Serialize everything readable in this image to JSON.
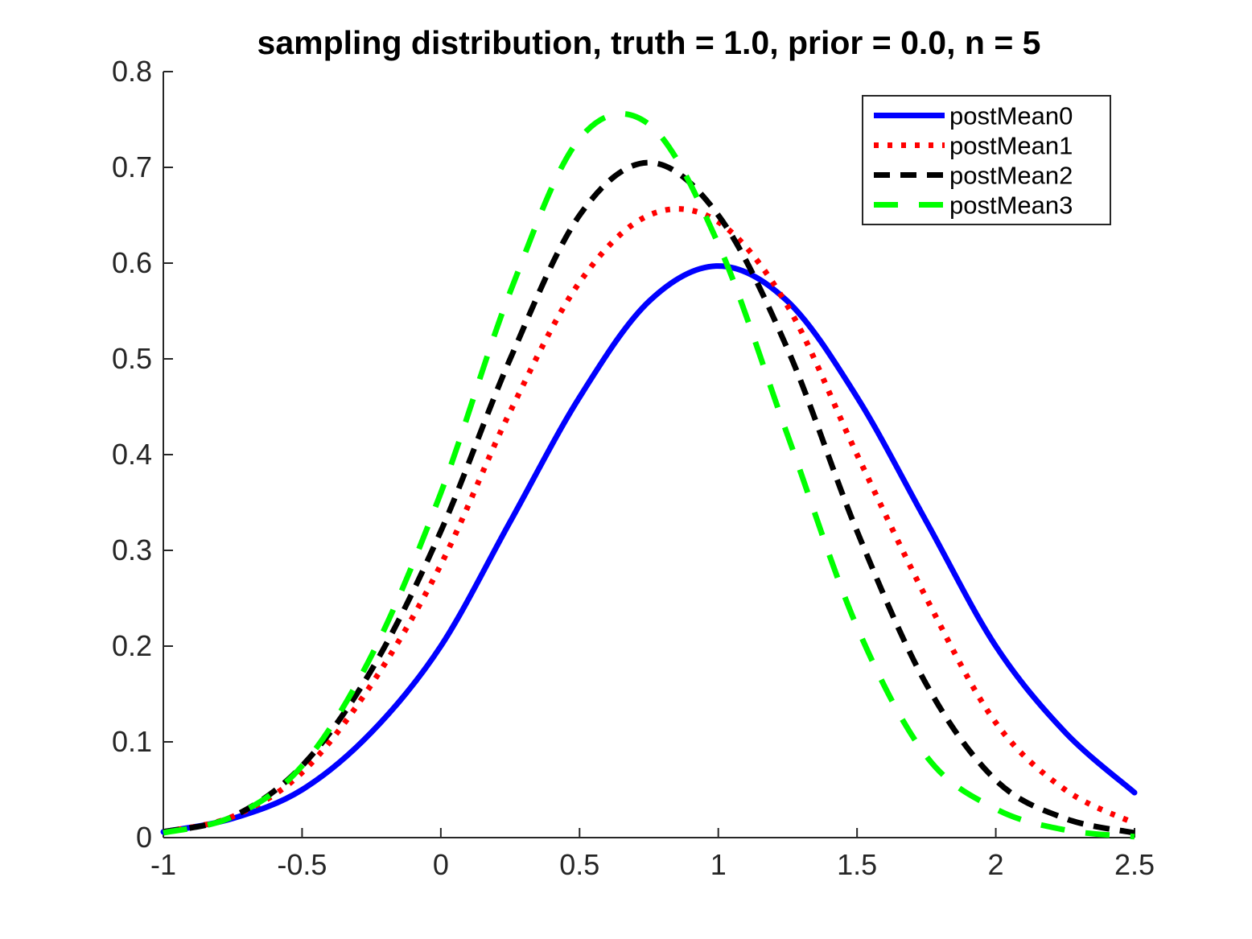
{
  "chart_data": {
    "type": "line",
    "title": "sampling distribution, truth = 1.0, prior = 0.0, n = 5",
    "xlabel": "",
    "ylabel": "",
    "xlim": [
      -1,
      2.5
    ],
    "ylim": [
      0,
      0.8
    ],
    "xticks": [
      -1,
      -0.5,
      0,
      0.5,
      1,
      1.5,
      2,
      2.5
    ],
    "xtick_labels": [
      "-1",
      "-0.5",
      "0",
      "0.5",
      "1",
      "1.5",
      "2",
      "2.5"
    ],
    "yticks": [
      0,
      0.1,
      0.2,
      0.3,
      0.4,
      0.5,
      0.6,
      0.7,
      0.8
    ],
    "ytick_labels": [
      "0",
      "0.1",
      "0.2",
      "0.3",
      "0.4",
      "0.5",
      "0.6",
      "0.7",
      "0.8"
    ],
    "grid": false,
    "legend_position": "top-right",
    "x": [
      -1,
      -0.75,
      -0.5,
      -0.25,
      0,
      0.25,
      0.5,
      0.75,
      1,
      1.25,
      1.5,
      1.75,
      2,
      2.25,
      2.5
    ],
    "series": [
      {
        "name": "postMean0",
        "color": "#0000ff",
        "style": "solid",
        "values": [
          0.006,
          0.02,
          0.05,
          0.11,
          0.2,
          0.33,
          0.46,
          0.56,
          0.597,
          0.56,
          0.46,
          0.33,
          0.2,
          0.11,
          0.047
        ]
      },
      {
        "name": "postMean1",
        "color": "#ff0000",
        "style": "dotted",
        "values": [
          0.006,
          0.022,
          0.068,
          0.16,
          0.285,
          0.445,
          0.58,
          0.65,
          0.643,
          0.555,
          0.4,
          0.25,
          0.12,
          0.05,
          0.015
        ]
      },
      {
        "name": "postMean2",
        "color": "#000000",
        "style": "dashed",
        "values": [
          0.006,
          0.022,
          0.075,
          0.175,
          0.32,
          0.5,
          0.65,
          0.705,
          0.65,
          0.51,
          0.32,
          0.16,
          0.06,
          0.02,
          0.005
        ]
      },
      {
        "name": "postMean3",
        "color": "#00ff00",
        "style": "longdash",
        "values": [
          0.005,
          0.022,
          0.075,
          0.19,
          0.36,
          0.57,
          0.73,
          0.745,
          0.62,
          0.42,
          0.22,
          0.085,
          0.03,
          0.008,
          0.001
        ]
      }
    ]
  }
}
